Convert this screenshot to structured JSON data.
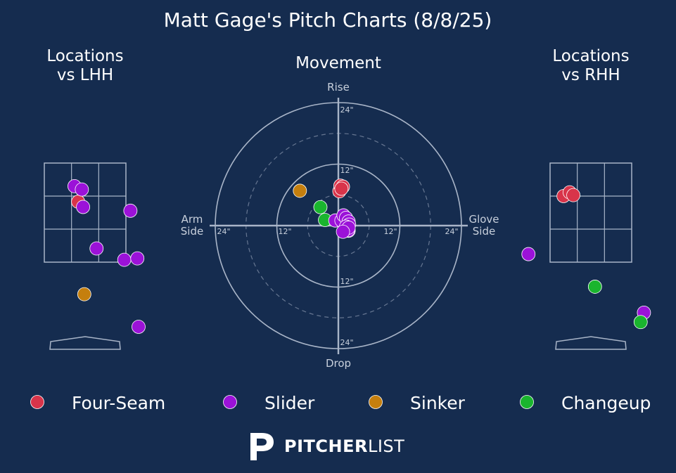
{
  "title": "Matt Gage's Pitch Charts (8/8/25)",
  "colors": {
    "background": "#152c4f",
    "Four-Seam": "#d8344a",
    "Slider": "#9b12d8",
    "Sinker": "#c57f0e",
    "Changeup": "#1ab52e",
    "grid": "#a9b5c8",
    "text": "#ffffff",
    "muted": "#c8d0dc"
  },
  "brand": {
    "logo_letter": "P",
    "part1": "PITCHER",
    "part2": "LIST"
  },
  "chart_data": [
    {
      "type": "scatter",
      "panel": "lhh",
      "title": "Locations\nvs LHH",
      "x_unit": "ft from plate center (catcher view)",
      "y_unit": "ft above ground",
      "strike_zone": {
        "x": [
          -1.0,
          1.0
        ],
        "y": [
          1.5,
          3.6
        ]
      },
      "points": [
        {
          "pitch": "Four-Seam",
          "x": -0.17,
          "y": 2.78
        },
        {
          "pitch": "Slider",
          "x": -0.26,
          "y": 3.11
        },
        {
          "pitch": "Slider",
          "x": -0.08,
          "y": 3.04
        },
        {
          "pitch": "Slider",
          "x": -0.05,
          "y": 2.67
        },
        {
          "pitch": "Slider",
          "x": 1.11,
          "y": 2.59
        },
        {
          "pitch": "Slider",
          "x": 0.28,
          "y": 1.79
        },
        {
          "pitch": "Slider",
          "x": 0.96,
          "y": 1.55
        },
        {
          "pitch": "Slider",
          "x": 1.28,
          "y": 1.58
        },
        {
          "pitch": "Sinker",
          "x": -0.02,
          "y": 0.82
        },
        {
          "pitch": "Slider",
          "x": 1.31,
          "y": 0.13
        }
      ]
    },
    {
      "type": "scatter",
      "panel": "movement",
      "title": "Movement",
      "axis_labels": {
        "top": "Rise",
        "bottom": "Drop",
        "left": "Arm\nSide",
        "right": "Glove\nSide"
      },
      "ring_labels": [
        "12\"",
        "24\""
      ],
      "rings_in": [
        6,
        12,
        18,
        24
      ],
      "points": [
        {
          "pitch": "Four-Seam",
          "x": 0.2,
          "y": 6.7
        },
        {
          "pitch": "Four-Seam",
          "x": 0.4,
          "y": 7.8
        },
        {
          "pitch": "Four-Seam",
          "x": 0.9,
          "y": 7.6
        },
        {
          "pitch": "Four-Seam",
          "x": 0.6,
          "y": 7.2
        },
        {
          "pitch": "Sinker",
          "x": -7.5,
          "y": 6.8
        },
        {
          "pitch": "Changeup",
          "x": -3.5,
          "y": 3.6
        },
        {
          "pitch": "Changeup",
          "x": -2.6,
          "y": 1.1
        },
        {
          "pitch": "Slider",
          "x": -0.6,
          "y": 1.0
        },
        {
          "pitch": "Slider",
          "x": 0.6,
          "y": 1.0
        },
        {
          "pitch": "Slider",
          "x": 1.0,
          "y": 2.0
        },
        {
          "pitch": "Slider",
          "x": 1.5,
          "y": 1.5
        },
        {
          "pitch": "Slider",
          "x": 2.0,
          "y": 0.8
        },
        {
          "pitch": "Slider",
          "x": 2.1,
          "y": 0.2
        },
        {
          "pitch": "Slider",
          "x": 1.5,
          "y": -0.2
        },
        {
          "pitch": "Slider",
          "x": 1.5,
          "y": -1.0
        },
        {
          "pitch": "Slider",
          "x": 2.0,
          "y": -1.0
        },
        {
          "pitch": "Slider",
          "x": 1.9,
          "y": -0.9
        },
        {
          "pitch": "Slider",
          "x": 2.0,
          "y": -0.4
        },
        {
          "pitch": "Slider",
          "x": 0.9,
          "y": -1.2
        }
      ]
    },
    {
      "type": "scatter",
      "panel": "rhh",
      "title": "Locations\nvs RHH",
      "x_unit": "ft from plate center (catcher view)",
      "y_unit": "ft above ground",
      "strike_zone": {
        "x": [
          -1.0,
          1.0
        ],
        "y": [
          1.5,
          3.6
        ]
      },
      "points": [
        {
          "pitch": "Four-Seam",
          "x": -0.67,
          "y": 2.9
        },
        {
          "pitch": "Four-Seam",
          "x": -0.52,
          "y": 2.98
        },
        {
          "pitch": "Four-Seam",
          "x": -0.43,
          "y": 2.92
        },
        {
          "pitch": "Slider",
          "x": -1.53,
          "y": 1.67
        },
        {
          "pitch": "Changeup",
          "x": 0.1,
          "y": 0.98
        },
        {
          "pitch": "Slider",
          "x": 1.3,
          "y": 0.43
        },
        {
          "pitch": "Changeup",
          "x": 1.22,
          "y": 0.23
        }
      ]
    }
  ],
  "legend": [
    {
      "pitch": "Four-Seam",
      "label": "Four-Seam"
    },
    {
      "pitch": "Slider",
      "label": "Slider"
    },
    {
      "pitch": "Sinker",
      "label": "Sinker"
    },
    {
      "pitch": "Changeup",
      "label": "Changeup"
    }
  ]
}
